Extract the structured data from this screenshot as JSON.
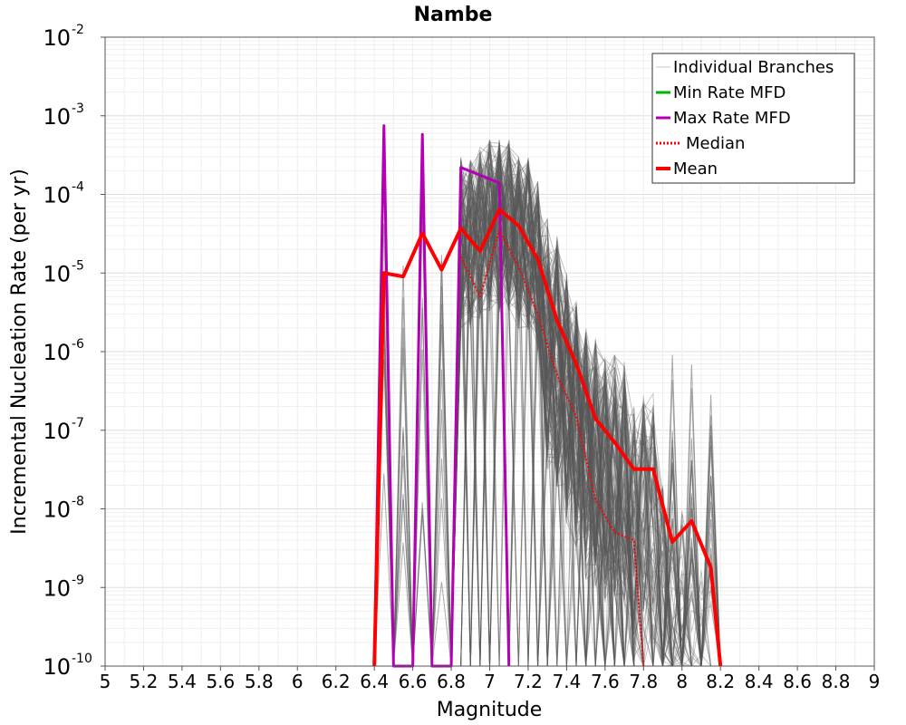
{
  "chart_data": {
    "type": "line",
    "title": "Nambe",
    "xlabel": "Magnitude",
    "ylabel": "Incremental Nucleation Rate (per yr)",
    "xlim": [
      5,
      9
    ],
    "ylim": [
      1e-10,
      0.01
    ],
    "y_scale": "log",
    "grid": true,
    "legend_position": "top-right",
    "x_ticks": [
      "5",
      "5.2",
      "5.4",
      "5.6",
      "5.8",
      "6",
      "6.2",
      "6.4",
      "6.6",
      "6.8",
      "7",
      "7.2",
      "7.4",
      "7.6",
      "7.8",
      "8",
      "8.2",
      "8.4",
      "8.6",
      "8.8",
      "9"
    ],
    "y_ticks": [
      {
        "base": "10",
        "exp": "-10",
        "value": 1e-10
      },
      {
        "base": "10",
        "exp": "-9",
        "value": 1e-09
      },
      {
        "base": "10",
        "exp": "-8",
        "value": 1e-08
      },
      {
        "base": "10",
        "exp": "-7",
        "value": 1e-07
      },
      {
        "base": "10",
        "exp": "-6",
        "value": 1e-06
      },
      {
        "base": "10",
        "exp": "-5",
        "value": 1e-05
      },
      {
        "base": "10",
        "exp": "-4",
        "value": 0.0001
      },
      {
        "base": "10",
        "exp": "-3",
        "value": 0.001
      },
      {
        "base": "10",
        "exp": "-2",
        "value": 0.01
      }
    ],
    "legend": [
      {
        "label": "Individual Branches",
        "color": "#c8c8c8",
        "style": "solid"
      },
      {
        "label": "Min Rate MFD",
        "color": "#00b400",
        "style": "solid"
      },
      {
        "label": "Max Rate MFD",
        "color": "#b400b4",
        "style": "solid"
      },
      {
        "label": "Median",
        "color": "#ff0000",
        "style": "dotted"
      },
      {
        "label": "Mean",
        "color": "#ff0000",
        "style": "solid"
      }
    ],
    "branch_spikes": [
      {
        "x": 6.45,
        "y": 0.0007
      },
      {
        "x": 6.55,
        "y": 3e-05
      },
      {
        "x": 6.65,
        "y": 0.0006
      },
      {
        "x": 6.75,
        "y": 0.0001
      }
    ],
    "branch_envelope": {
      "x": [
        6.85,
        6.9,
        6.95,
        7.0,
        7.05,
        7.1,
        7.15,
        7.2,
        7.25,
        7.3,
        7.35,
        7.4,
        7.45,
        7.5,
        7.55,
        7.6,
        7.65,
        7.7,
        7.75,
        7.8,
        7.85,
        7.9,
        7.95,
        8.0,
        8.05,
        8.1,
        8.15
      ],
      "y_top": [
        0.0003,
        0.0003,
        0.0004,
        0.0005,
        0.0005,
        0.0005,
        0.0003,
        0.0003,
        0.00015,
        5e-05,
        3e-05,
        1e-05,
        5e-06,
        2e-06,
        1.5e-06,
        1e-06,
        1e-06,
        8e-07,
        2e-07,
        3e-07,
        3e-07,
        2e-08,
        5e-09,
        1e-08,
        5e-09,
        3e-09,
        5e-09
      ]
    },
    "branch_spikes_tail": [
      {
        "x": 7.95,
        "y": 1e-06
      },
      {
        "x": 8.05,
        "y": 7e-07
      },
      {
        "x": 8.15,
        "y": 3e-07
      }
    ],
    "series": [
      {
        "name": "Max Rate MFD",
        "color": "#b400b4",
        "style": "solid",
        "x": [
          6.4,
          6.45,
          6.5,
          6.6,
          6.65,
          6.7,
          6.8,
          6.85,
          7.05,
          7.1
        ],
        "y": [
          1e-10,
          0.00075,
          1e-10,
          1e-10,
          0.00058,
          1e-10,
          1e-10,
          0.00022,
          0.00014,
          1e-10
        ]
      },
      {
        "name": "Median",
        "color": "#ff0000",
        "style": "dotted",
        "x": [
          6.85,
          6.95,
          7.05,
          7.15,
          7.25,
          7.35,
          7.45,
          7.55,
          7.65,
          7.75,
          7.8
        ],
        "y": [
          1.6e-05,
          5e-06,
          3.5e-05,
          1.2e-05,
          3e-06,
          5e-07,
          1.5e-07,
          1.3e-08,
          5e-09,
          4e-09,
          1e-10
        ]
      },
      {
        "name": "Mean",
        "color": "#ff0000",
        "style": "solid",
        "x": [
          6.4,
          6.45,
          6.55,
          6.65,
          6.75,
          6.85,
          6.95,
          7.05,
          7.15,
          7.25,
          7.35,
          7.45,
          7.55,
          7.65,
          7.75,
          7.85,
          7.95,
          8.05,
          8.15,
          8.2
        ],
        "y": [
          1e-10,
          1e-05,
          9e-06,
          3.2e-05,
          1.1e-05,
          3.7e-05,
          1.9e-05,
          6.4e-05,
          4e-05,
          1.5e-05,
          2.5e-06,
          7e-07,
          1.4e-07,
          7e-08,
          3.2e-08,
          3.2e-08,
          3.8e-09,
          7e-09,
          1.8e-09,
          1e-10
        ]
      }
    ]
  }
}
